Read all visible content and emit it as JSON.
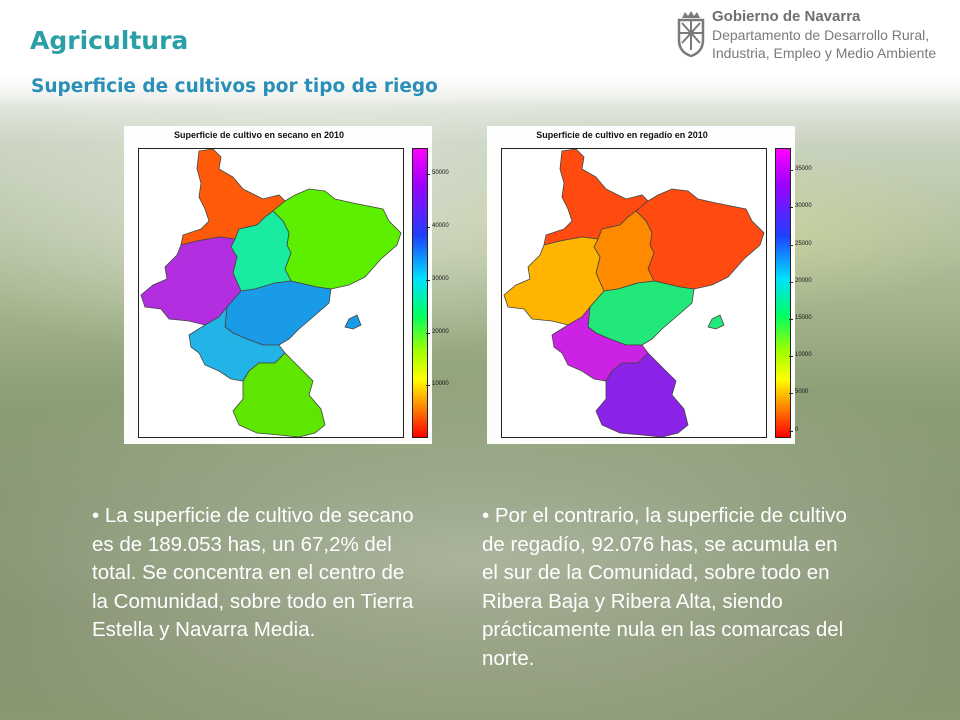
{
  "header": {
    "title": "Agricultura",
    "subtitle": "Superficie de cultivos por tipo de riego"
  },
  "logo": {
    "icon": "navarra-coat-of-arms-icon",
    "line1": "Gobierno de Navarra",
    "line2": "Departamento de Desarrollo Rural,",
    "line3": "Industria, Empleo y Medio Ambiente"
  },
  "maps": [
    {
      "title": "Superficie de cultivo en secano en 2010",
      "legend_ticks": [
        "50000",
        "40000",
        "30000",
        "20000",
        "10000"
      ],
      "legend_tick_values": [
        50000,
        40000,
        30000,
        20000,
        10000
      ],
      "legend_range": [
        0,
        55000
      ],
      "region_colors": {
        "north": "#ff5a0a",
        "northeast": "#5cf000",
        "center": "#19eba0",
        "west": "#b22ee0",
        "middle": "#1a9be8",
        "southwest": "#22b4e6",
        "south": "#5ee600",
        "exclave": "#1a9be8"
      }
    },
    {
      "title": "Superficie de cultivo en regadío en 2010",
      "legend_ticks": [
        "35000",
        "30000",
        "25000",
        "20000",
        "15000",
        "10000",
        "5000",
        "0"
      ],
      "legend_tick_values": [
        35000,
        30000,
        25000,
        20000,
        15000,
        10000,
        5000,
        0
      ],
      "legend_range": [
        -1000,
        38000
      ],
      "region_colors": {
        "north": "#ff4a10",
        "northeast": "#ff4a10",
        "center": "#ff8a00",
        "west": "#ffb400",
        "middle": "#22e87a",
        "southwest": "#cc22e6",
        "south": "#8a22e8",
        "exclave": "#22e87a"
      }
    }
  ],
  "paragraphs": {
    "left": "• La superficie de cultivo de secano es de 189.053 has, un 67,2% del total. Se concentra en el centro de la Comunidad, sobre todo en Tierra Estella y Navarra Media.",
    "right": "• Por el contrario, la superficie de cultivo de regadío, 92.076 has, se acumula en el sur de la Comunidad, sobre todo en Ribera Baja y Ribera Alta, siendo prácticamente nula en las comarcas del norte."
  }
}
